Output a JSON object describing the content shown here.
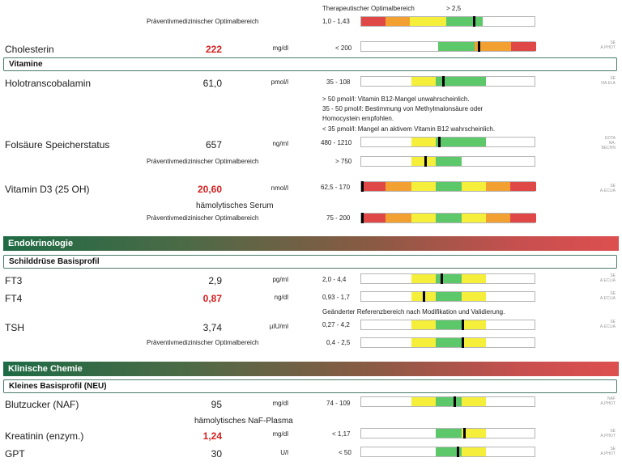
{
  "top": {
    "therapy_label": "Therapeutischer Optimalbereich",
    "therapy_ref": "> 2,5",
    "prev_label": "Präventivmedizinischer Optimalbereich",
    "prev_ref": "1,0 - 1,43"
  },
  "cholesterin": {
    "name": "Cholesterin",
    "value": "222",
    "unit": "mg/dl",
    "ref": "< 200",
    "method": "SE\nA.PHOT"
  },
  "vitamine": {
    "title": "Vitamine",
    "holo": {
      "name": "Holotranscobalamin",
      "value": "61,0",
      "unit": "pmol/l",
      "ref": "35 - 108",
      "method": "SE\nNA.ELA"
    },
    "holo_note_1": "> 50 pmol/l:     Vitamin B12-Mangel unwahrscheinlich.",
    "holo_note_2": "35 - 50 pmol/l: Bestimmung von Methylmalonsäure oder",
    "holo_note_3": "Homocystein empfohlen.",
    "holo_note_4": "< 35 pmol/l:     Mangel an aktivem Vitamin B12 wahrscheinlich.",
    "folsaeure": {
      "name": "Folsäure Speicherstatus",
      "value": "657",
      "unit": "ng/ml",
      "ref": "480 - 1210",
      "method": "EDTA\nNA.\nBECHN"
    },
    "folsaeure_prev_label": "Präventivmedizinischer Optimalbereich",
    "folsaeure_prev_ref": "> 750",
    "vitd": {
      "name": "Vitamin D3 (25 OH)",
      "value": "20,60",
      "unit": "nmol/l",
      "ref": "62,5 - 170",
      "method": "SE\nA.ECLIA"
    },
    "vitd_sub": "hämolytisches Serum",
    "vitd_prev_label": "Präventivmedizinischer Optimalbereich",
    "vitd_prev_ref": "75 - 200"
  },
  "endo": {
    "band": "Endokrinologie",
    "group": "Schilddrüse Basisprofil",
    "ft3": {
      "name": "FT3",
      "value": "2,9",
      "unit": "pg/ml",
      "ref": "2,0 - 4,4",
      "method": "SE\nA.ECLIA"
    },
    "ft4": {
      "name": "FT4",
      "value": "0,87",
      "unit": "ng/dl",
      "ref": "0,93 - 1,7",
      "method": "SE\nA.ECLIA"
    },
    "note": "Geänderter Referenzbereich nach Modifikation und Validierung.",
    "tsh": {
      "name": "TSH",
      "value": "3,74",
      "unit": "µIU/ml",
      "ref": "0,27 - 4,2",
      "method": "SE\nA.ECLIA"
    },
    "tsh_prev_label": "Präventivmedizinischer Optimalbereich",
    "tsh_prev_ref": "0,4 - 2,5"
  },
  "klin": {
    "band": "Klinische Chemie",
    "group": "Kleines Basisprofil (NEU)",
    "bz": {
      "name": "Blutzucker (NAF)",
      "value": "95",
      "unit": "mg/dl",
      "ref": "74 - 109",
      "method": "NAF\nA.PHOT"
    },
    "bz_sub": "hämolytisches NaF-Plasma",
    "krea": {
      "name": "Kreatinin (enzym.)",
      "value": "1,24",
      "unit": "mg/dl",
      "ref": "< 1,17",
      "method": "SE\nA.PHOT"
    },
    "gpt": {
      "name": "GPT",
      "value": "30",
      "unit": "U/l",
      "ref": "< 50",
      "method": "SE\nA.PHOT"
    }
  },
  "colors": {
    "red": "#e04848",
    "orange": "#f2a031",
    "yellow": "#f5ef3c",
    "green": "#5cc86a",
    "marker": "#000000",
    "high_value": "#d62020"
  }
}
